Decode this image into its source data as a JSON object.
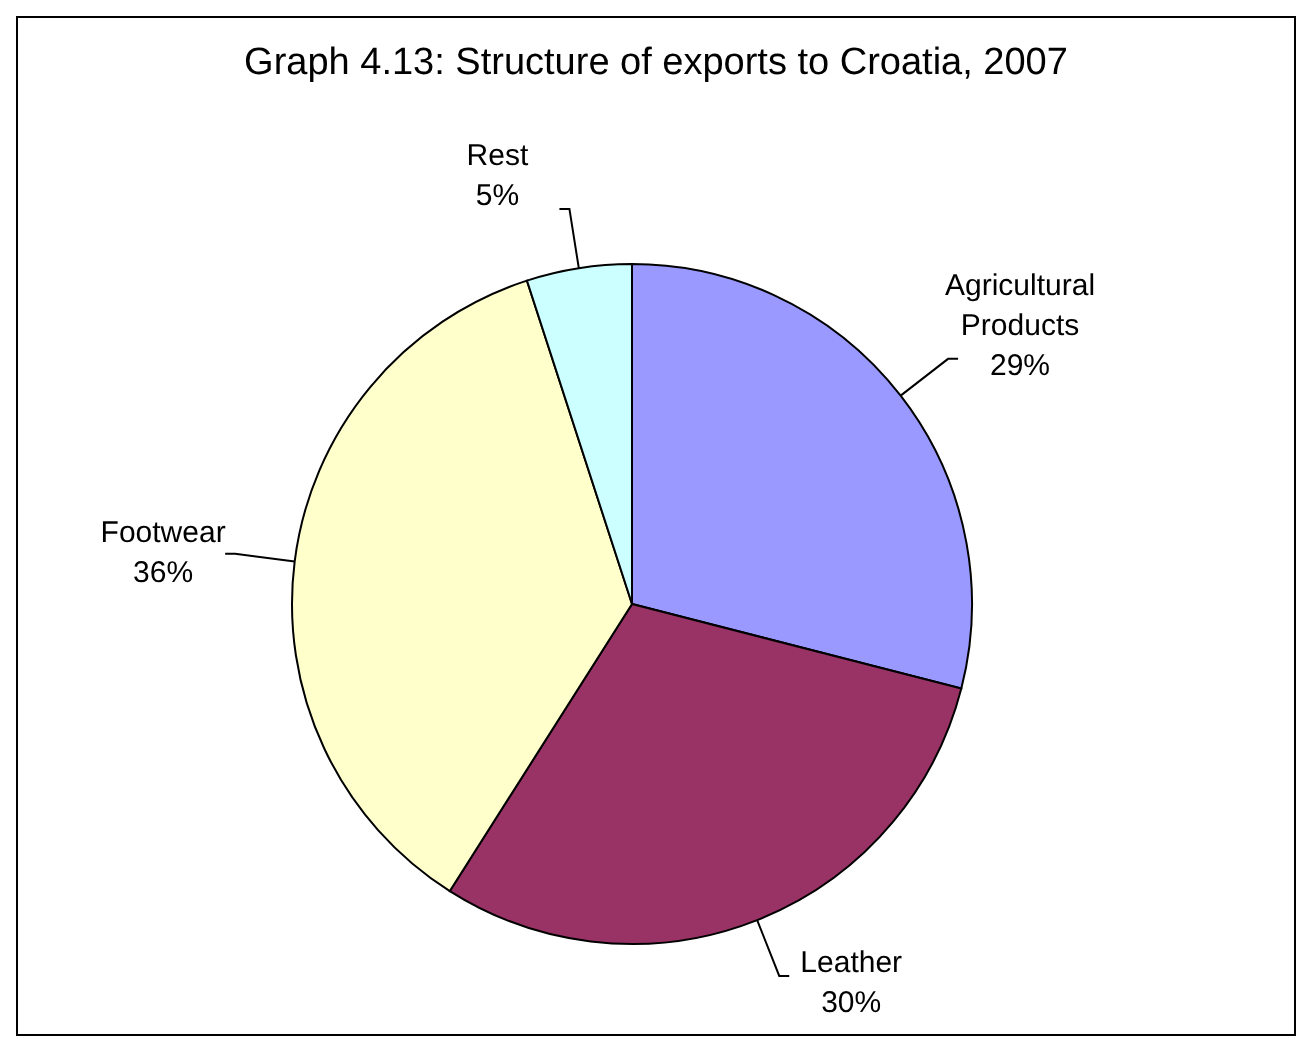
{
  "chart_data": {
    "type": "pie",
    "title": "Graph 4.13: Structure of exports to Croatia, 2007",
    "categories": [
      "Agricultural Products",
      "Leather",
      "Footwear",
      "Rest"
    ],
    "values": [
      29,
      30,
      36,
      5
    ],
    "value_labels": [
      "29%",
      "30%",
      "36%",
      "5%"
    ],
    "colors": [
      "#9999ff",
      "#993366",
      "#ffffcc",
      "#ccffff"
    ]
  }
}
